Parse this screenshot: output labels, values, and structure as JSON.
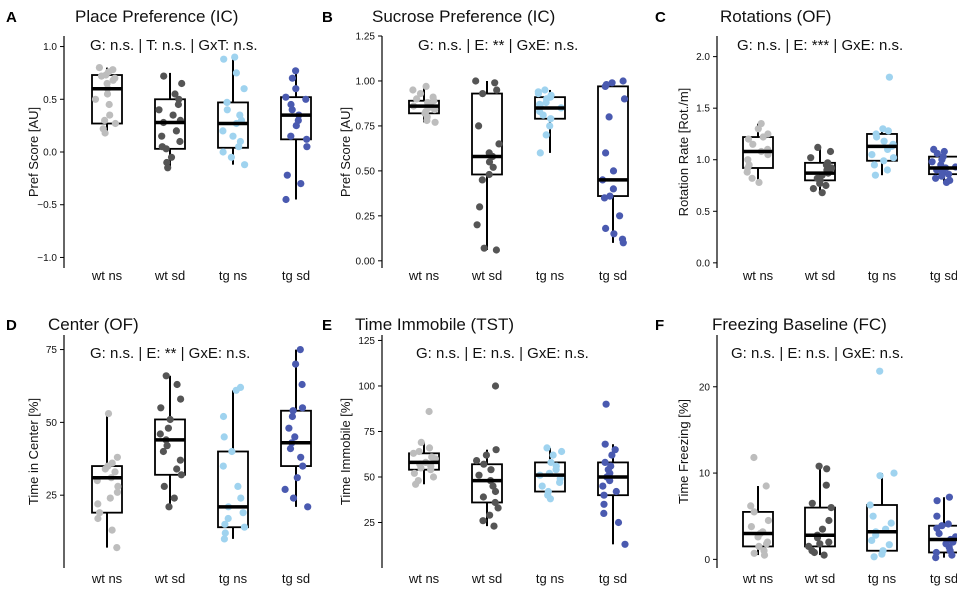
{
  "colors": {
    "wt_ns": "#bdbdbd",
    "wt_sd": "#555555",
    "tg_ns": "#9fd3ef",
    "tg_sd": "#4a5ab0",
    "box": "#000000"
  },
  "chart_data": [
    {
      "id": "A",
      "type": "box+strip",
      "title": "Place Preference (IC)",
      "stats": "G: n.s. | T: n.s. | GxT: n.s.",
      "ylabel": "Pref Score [AU]",
      "ylim": [
        -1.1,
        1.1
      ],
      "yticks": [
        -1.0,
        -0.5,
        0.0,
        0.5,
        1.0
      ],
      "ytick_labels": [
        "−1.0",
        "−0.5",
        "0.0",
        "0.5",
        "1.0"
      ],
      "categories": [
        "wt ns",
        "wt sd",
        "tg ns",
        "tg sd"
      ],
      "groups": [
        {
          "name": "wt ns",
          "color_key": "wt_ns",
          "whisker_low": 0.18,
          "q1": 0.27,
          "median": 0.6,
          "q3": 0.73,
          "whisker_high": 0.8,
          "points": [
            0.8,
            0.78,
            0.76,
            0.73,
            0.72,
            0.7,
            0.68,
            0.65,
            0.6,
            0.55,
            0.5,
            0.45,
            0.35,
            0.3,
            0.27,
            0.22,
            0.18
          ]
        },
        {
          "name": "wt sd",
          "color_key": "wt_sd",
          "whisker_low": -0.15,
          "q1": 0.03,
          "median": 0.28,
          "q3": 0.5,
          "whisker_high": 0.75,
          "points": [
            0.72,
            0.65,
            0.55,
            0.5,
            0.45,
            0.4,
            0.35,
            0.3,
            0.28,
            0.2,
            0.15,
            0.1,
            0.05,
            0.03,
            -0.05,
            -0.1,
            -0.15
          ]
        },
        {
          "name": "tg ns",
          "color_key": "tg_ns",
          "whisker_low": -0.12,
          "q1": 0.04,
          "median": 0.27,
          "q3": 0.47,
          "whisker_high": 0.9,
          "points": [
            0.9,
            0.88,
            0.75,
            0.6,
            0.47,
            0.4,
            0.35,
            0.3,
            0.27,
            0.2,
            0.15,
            0.1,
            0.05,
            0.0,
            -0.05,
            -0.12
          ]
        },
        {
          "name": "tg sd",
          "color_key": "tg_sd",
          "whisker_low": -0.45,
          "q1": 0.12,
          "median": 0.35,
          "q3": 0.52,
          "whisker_high": 0.77,
          "points": [
            0.77,
            0.7,
            0.6,
            0.52,
            0.5,
            0.45,
            0.4,
            0.35,
            0.3,
            0.25,
            0.15,
            0.12,
            0.05,
            -0.22,
            -0.3,
            -0.45
          ]
        }
      ]
    },
    {
      "id": "B",
      "type": "box+strip",
      "title": "Sucrose Preference (IC)",
      "stats": "G: n.s. | E: ** | GxE: n.s.",
      "ylabel": "Pref Score [AU]",
      "ylim": [
        -0.04,
        1.25
      ],
      "yticks": [
        0.0,
        0.25,
        0.5,
        0.75,
        1.0,
        1.25
      ],
      "ytick_labels": [
        "0.00",
        "0.25",
        "0.50",
        "0.75",
        "1.00",
        "1.25"
      ],
      "categories": [
        "wt ns",
        "wt sd",
        "tg ns",
        "tg sd"
      ],
      "groups": [
        {
          "name": "wt ns",
          "color_key": "wt_ns",
          "whisker_low": 0.77,
          "q1": 0.82,
          "median": 0.86,
          "q3": 0.89,
          "whisker_high": 0.97,
          "points": [
            0.97,
            0.95,
            0.93,
            0.91,
            0.9,
            0.89,
            0.88,
            0.87,
            0.86,
            0.85,
            0.84,
            0.83,
            0.82,
            0.8,
            0.78,
            0.77
          ]
        },
        {
          "name": "wt sd",
          "color_key": "wt_sd",
          "whisker_low": 0.06,
          "q1": 0.48,
          "median": 0.58,
          "q3": 0.93,
          "whisker_high": 1.0,
          "points": [
            1.0,
            0.99,
            0.95,
            0.93,
            0.75,
            0.65,
            0.6,
            0.58,
            0.55,
            0.52,
            0.48,
            0.45,
            0.3,
            0.2,
            0.07,
            0.06
          ]
        },
        {
          "name": "tg ns",
          "color_key": "tg_ns",
          "whisker_low": 0.6,
          "q1": 0.79,
          "median": 0.85,
          "q3": 0.91,
          "whisker_high": 0.95,
          "points": [
            0.95,
            0.94,
            0.93,
            0.92,
            0.91,
            0.9,
            0.88,
            0.87,
            0.86,
            0.85,
            0.83,
            0.81,
            0.79,
            0.75,
            0.7,
            0.6
          ]
        },
        {
          "name": "tg sd",
          "color_key": "tg_sd",
          "whisker_low": 0.1,
          "q1": 0.36,
          "median": 0.45,
          "q3": 0.97,
          "whisker_high": 1.0,
          "points": [
            1.0,
            0.99,
            0.98,
            0.97,
            0.9,
            0.8,
            0.6,
            0.5,
            0.45,
            0.4,
            0.36,
            0.35,
            0.25,
            0.18,
            0.15,
            0.12,
            0.1
          ]
        }
      ]
    },
    {
      "id": "C",
      "type": "box+strip",
      "title": "Rotations (OF)",
      "stats": "G: n.s. | E: *** | GxE: n.s.",
      "ylabel": "Rotation Rate [Rot./m]",
      "ylim": [
        -0.05,
        2.2
      ],
      "yticks": [
        0.0,
        0.5,
        1.0,
        1.5,
        2.0
      ],
      "ytick_labels": [
        "0.0",
        "0.5",
        "1.0",
        "1.5",
        "2.0"
      ],
      "categories": [
        "wt ns",
        "wt sd",
        "tg ns",
        "tg sd"
      ],
      "groups": [
        {
          "name": "wt ns",
          "color_key": "wt_ns",
          "whisker_low": 0.78,
          "q1": 0.92,
          "median": 1.08,
          "q3": 1.22,
          "whisker_high": 1.35,
          "points": [
            1.35,
            1.3,
            1.25,
            1.22,
            1.2,
            1.15,
            1.1,
            1.08,
            1.05,
            1.0,
            0.95,
            0.92,
            0.88,
            0.82,
            0.78
          ]
        },
        {
          "name": "wt sd",
          "color_key": "wt_sd",
          "whisker_low": 0.68,
          "q1": 0.8,
          "median": 0.87,
          "q3": 0.97,
          "whisker_high": 1.12,
          "points": [
            1.12,
            1.08,
            1.02,
            0.97,
            0.95,
            0.92,
            0.9,
            0.87,
            0.85,
            0.82,
            0.8,
            0.77,
            0.75,
            0.72,
            0.68
          ]
        },
        {
          "name": "tg ns",
          "color_key": "tg_ns",
          "whisker_low": 0.85,
          "q1": 0.99,
          "median": 1.13,
          "q3": 1.25,
          "whisker_high": 1.3,
          "points": [
            1.8,
            1.3,
            1.28,
            1.25,
            1.22,
            1.18,
            1.15,
            1.13,
            1.1,
            1.05,
            1.02,
            0.99,
            0.95,
            0.9,
            0.85
          ]
        },
        {
          "name": "tg sd",
          "color_key": "tg_sd",
          "whisker_low": 0.78,
          "q1": 0.86,
          "median": 0.92,
          "q3": 1.03,
          "whisker_high": 1.1,
          "points": [
            1.1,
            1.08,
            1.06,
            1.03,
            1.0,
            0.98,
            0.95,
            0.93,
            0.92,
            0.9,
            0.88,
            0.86,
            0.84,
            0.82,
            0.8,
            0.78
          ]
        }
      ]
    },
    {
      "id": "D",
      "type": "box+strip",
      "title": "Center (OF)",
      "stats": "G: n.s. | E: ** | GxE: n.s.",
      "ylabel": "Time in Center [%]",
      "ylim": [
        0,
        80
      ],
      "yticks": [
        25,
        50,
        75
      ],
      "ytick_labels": [
        "25",
        "50",
        "75"
      ],
      "categories": [
        "wt ns",
        "wt sd",
        "tg ns",
        "tg sd"
      ],
      "groups": [
        {
          "name": "wt ns",
          "color_key": "wt_ns",
          "whisker_low": 7,
          "q1": 19,
          "median": 31,
          "q3": 35,
          "whisker_high": 53,
          "points": [
            53,
            38,
            36,
            35,
            34,
            33,
            31,
            30,
            28,
            26,
            24,
            22,
            19,
            17,
            13,
            7
          ]
        },
        {
          "name": "wt sd",
          "color_key": "wt_sd",
          "whisker_low": 21,
          "q1": 32,
          "median": 44,
          "q3": 51,
          "whisker_high": 66,
          "points": [
            66,
            63,
            58,
            55,
            51,
            48,
            46,
            44,
            42,
            40,
            37,
            34,
            32,
            28,
            24,
            21
          ]
        },
        {
          "name": "tg ns",
          "color_key": "tg_ns",
          "whisker_low": 10,
          "q1": 14,
          "median": 21,
          "q3": 40,
          "whisker_high": 61,
          "points": [
            62,
            61,
            52,
            45,
            40,
            35,
            28,
            24,
            21,
            19,
            17,
            15,
            14,
            12,
            10
          ]
        },
        {
          "name": "tg sd",
          "color_key": "tg_sd",
          "whisker_low": 21,
          "q1": 35,
          "median": 43,
          "q3": 54,
          "whisker_high": 75,
          "points": [
            75,
            70,
            63,
            55,
            54,
            52,
            48,
            45,
            43,
            41,
            38,
            35,
            31,
            27,
            24,
            21
          ]
        }
      ]
    },
    {
      "id": "E",
      "type": "box+strip",
      "title": "Time Immobile (TST)",
      "stats": "G: n.s. | E: n.s. | GxE: n.s.",
      "ylabel": "Time Immobile [%]",
      "ylim": [
        0,
        128
      ],
      "yticks": [
        25,
        50,
        75,
        100,
        125
      ],
      "ytick_labels": [
        "25",
        "50",
        "75",
        "100",
        "125"
      ],
      "categories": [
        "wt ns",
        "wt sd",
        "tg ns",
        "tg sd"
      ],
      "groups": [
        {
          "name": "wt ns",
          "color_key": "wt_ns",
          "whisker_low": 46,
          "q1": 54,
          "median": 58,
          "q3": 63,
          "whisker_high": 69,
          "points": [
            86,
            69,
            66,
            64,
            63,
            61,
            60,
            58,
            57,
            56,
            55,
            54,
            52,
            50,
            48,
            46
          ]
        },
        {
          "name": "wt sd",
          "color_key": "wt_sd",
          "whisker_low": 23,
          "q1": 36,
          "median": 48,
          "q3": 57,
          "whisker_high": 65,
          "points": [
            100,
            65,
            62,
            59,
            57,
            54,
            51,
            48,
            45,
            42,
            39,
            36,
            33,
            29,
            26,
            23
          ]
        },
        {
          "name": "tg ns",
          "color_key": "tg_ns",
          "whisker_low": 38,
          "q1": 42,
          "median": 51,
          "q3": 58,
          "whisker_high": 66,
          "points": [
            66,
            64,
            62,
            58,
            56,
            54,
            52,
            51,
            49,
            47,
            45,
            42,
            40,
            38
          ]
        },
        {
          "name": "tg sd",
          "color_key": "tg_sd",
          "whisker_low": 13,
          "q1": 40,
          "median": 50,
          "q3": 58,
          "whisker_high": 68,
          "points": [
            90,
            68,
            65,
            62,
            58,
            56,
            54,
            52,
            50,
            48,
            45,
            42,
            40,
            35,
            30,
            25,
            13
          ]
        }
      ]
    },
    {
      "id": "F",
      "type": "box+strip",
      "title": "Freezing Baseline (FC)",
      "stats": "G: n.s. | E: n.s. | GxE: n.s.",
      "ylabel": "Time Freezing [%]",
      "ylim": [
        -1,
        26
      ],
      "yticks": [
        0,
        10,
        20
      ],
      "ytick_labels": [
        "0",
        "10",
        "20"
      ],
      "categories": [
        "wt ns",
        "wt sd",
        "tg ns",
        "tg sd"
      ],
      "groups": [
        {
          "name": "wt ns",
          "color_key": "wt_ns",
          "whisker_low": 0.5,
          "q1": 1.5,
          "median": 3,
          "q3": 5.5,
          "whisker_high": 8.5,
          "points": [
            11.8,
            8.5,
            6.2,
            5.5,
            4.5,
            3.8,
            3.2,
            3.0,
            2.6,
            2.0,
            1.8,
            1.5,
            1.0,
            0.7,
            0.5
          ]
        },
        {
          "name": "wt sd",
          "color_key": "wt_sd",
          "whisker_low": 0.5,
          "q1": 1.5,
          "median": 2.8,
          "q3": 6,
          "whisker_high": 10.5,
          "points": [
            10.8,
            10.5,
            8.6,
            6.5,
            6.0,
            4.5,
            3.5,
            2.8,
            2.5,
            2.0,
            1.8,
            1.5,
            1.0,
            0.8,
            0.5
          ]
        },
        {
          "name": "tg ns",
          "color_key": "tg_ns",
          "whisker_low": 0.3,
          "q1": 1,
          "median": 3.2,
          "q3": 6.3,
          "whisker_high": 10,
          "points": [
            21.8,
            10.0,
            9.7,
            6.3,
            5.0,
            4.2,
            3.5,
            3.2,
            2.8,
            2.2,
            1.7,
            1.0,
            0.6,
            0.3
          ]
        },
        {
          "name": "tg sd",
          "color_key": "tg_sd",
          "whisker_low": 0.2,
          "q1": 0.8,
          "median": 2.3,
          "q3": 3.9,
          "whisker_high": 7.2,
          "points": [
            7.2,
            6.8,
            5.0,
            4.1,
            3.9,
            3.6,
            3.0,
            2.6,
            2.3,
            2.0,
            1.8,
            1.4,
            1.0,
            0.8,
            0.5,
            0.2
          ]
        }
      ]
    }
  ]
}
